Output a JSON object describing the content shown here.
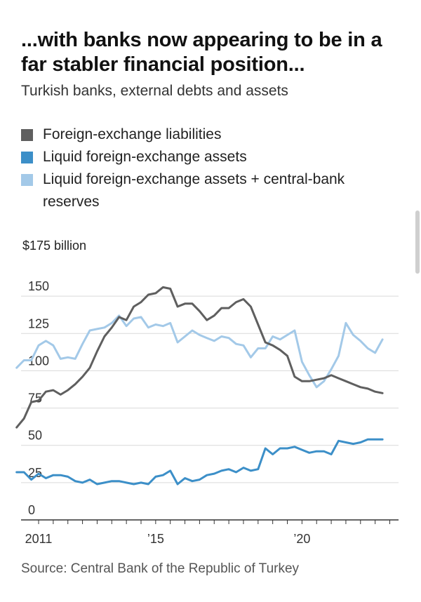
{
  "colors": {
    "liabilities": "#5f5f5f",
    "liquid_assets": "#3c8fc8",
    "liquid_plus_reserves": "#a3c9e8",
    "gridline": "#d9d9d9",
    "axis": "#333333"
  },
  "chart_data": {
    "type": "line",
    "title": "...with banks now appearing to be in a far stabler financial position...",
    "subtitle": "Turkish banks, external debts and assets",
    "ylabel": "$175 billion",
    "source": "Source: Central Bank of the Republic of Turkey",
    "ylim": [
      0,
      175
    ],
    "xlim": [
      2009.9,
      2022.8
    ],
    "yticks": [
      0,
      25,
      50,
      75,
      100,
      125,
      150
    ],
    "ytick_labels": [
      "0",
      "25",
      "50",
      "75",
      "100",
      "125",
      "150"
    ],
    "xticks": [
      2010.5,
      2011,
      2011.5,
      2012,
      2012.5,
      2013,
      2013.5,
      2014,
      2014.5,
      2015,
      2015.5,
      2016,
      2016.5,
      2017,
      2017.5,
      2018,
      2018.5,
      2019,
      2019.5,
      2020,
      2020.5,
      2021,
      2021.5,
      2022,
      2022.5
    ],
    "xlabels": [
      {
        "x": 2010.5,
        "label": "2011"
      },
      {
        "x": 2014.5,
        "label": "’15"
      },
      {
        "x": 2019.5,
        "label": "’20"
      }
    ],
    "x": [
      2009.75,
      2010,
      2010.25,
      2010.5,
      2010.75,
      2011,
      2011.25,
      2011.5,
      2011.75,
      2012,
      2012.25,
      2012.5,
      2012.75,
      2013,
      2013.25,
      2013.5,
      2013.75,
      2014,
      2014.25,
      2014.5,
      2014.75,
      2015,
      2015.25,
      2015.5,
      2015.75,
      2016,
      2016.25,
      2016.5,
      2016.75,
      2017,
      2017.25,
      2017.5,
      2017.75,
      2018,
      2018.25,
      2018.5,
      2018.75,
      2019,
      2019.25,
      2019.5,
      2019.75,
      2020,
      2020.25,
      2020.5,
      2020.75,
      2021,
      2021.25,
      2021.5,
      2021.75,
      2022,
      2022.25
    ],
    "series": [
      {
        "name": "Foreign-exchange liabilities",
        "key": "liabilities",
        "values": [
          62,
          68,
          79,
          80,
          86,
          87,
          84,
          87,
          91,
          96,
          102,
          113,
          123,
          129,
          136,
          134,
          143,
          146,
          151,
          152,
          156,
          155,
          143,
          145,
          145,
          140,
          134,
          137,
          142,
          142,
          146,
          148,
          143,
          131,
          119,
          117,
          114,
          110,
          96,
          93,
          93,
          94,
          95,
          97,
          95,
          93,
          91,
          89,
          88,
          86,
          85
        ]
      },
      {
        "name": "Liquid foreign-exchange assets",
        "key": "liquid_assets",
        "values": [
          32,
          32,
          27,
          31,
          28,
          30,
          30,
          29,
          26,
          25,
          27,
          24,
          25,
          26,
          26,
          25,
          24,
          25,
          24,
          29,
          30,
          33,
          24,
          28,
          26,
          27,
          30,
          31,
          33,
          34,
          32,
          35,
          33,
          34,
          48,
          44,
          48,
          48,
          49,
          47,
          45,
          46,
          46,
          44,
          53,
          52,
          51,
          52,
          54,
          54,
          54
        ]
      },
      {
        "name": "Liquid foreign-exchange assets + central-bank reserves",
        "key": "liquid_plus_reserves",
        "values": [
          102,
          107,
          107,
          117,
          120,
          117,
          108,
          109,
          108,
          118,
          127,
          128,
          129,
          132,
          137,
          130,
          135,
          136,
          129,
          131,
          130,
          132,
          119,
          123,
          127,
          124,
          122,
          120,
          123,
          122,
          118,
          117,
          109,
          115,
          115,
          123,
          121,
          124,
          127,
          106,
          97,
          89,
          93,
          101,
          110,
          132,
          124,
          120,
          115,
          112,
          121
        ]
      }
    ]
  }
}
